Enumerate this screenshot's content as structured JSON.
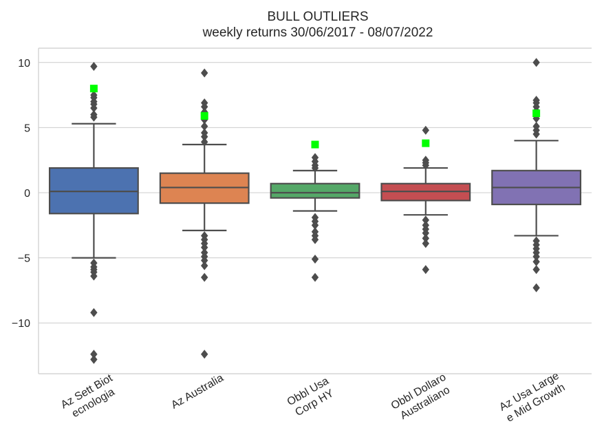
{
  "chart_data": {
    "type": "box",
    "title": "BULL OUTLIERS",
    "subtitle": "weekly returns 30/06/2017 - 08/07/2022",
    "xlabel": "",
    "ylabel": "",
    "ylim": [
      -13.9,
      11.1
    ],
    "yticks": [
      10,
      5,
      0,
      -5,
      -10
    ],
    "grid": "horizontal",
    "highlight_color": "#00ff00",
    "series": [
      {
        "category_lines": [
          "Az Sett Biot",
          "ecnologia"
        ],
        "color": "#4c72b0",
        "whisker_low": -5.0,
        "q1": -1.6,
        "median": 0.1,
        "q3": 1.9,
        "whisker_high": 5.3,
        "outliers": [
          9.7,
          7.5,
          7.3,
          7.0,
          6.8,
          6.5,
          6.0,
          5.8,
          -5.4,
          -5.7,
          -5.9,
          -6.1,
          -6.4,
          -9.2,
          -12.4,
          -12.8
        ],
        "highlight": 8.0
      },
      {
        "category_lines": [
          "Az Australia"
        ],
        "color": "#dd8452",
        "whisker_low": -2.9,
        "q1": -0.8,
        "median": 0.4,
        "q3": 1.5,
        "whisker_high": 3.7,
        "outliers": [
          9.2,
          6.9,
          6.6,
          6.2,
          5.6,
          5.1,
          4.6,
          4.3,
          3.9,
          -3.3,
          -3.6,
          -3.9,
          -4.2,
          -4.6,
          -4.9,
          -5.2,
          -5.6,
          -6.5,
          -12.4
        ],
        "highlight": 5.9
      },
      {
        "category_lines": [
          "Obbl Usa",
          "Corp HY"
        ],
        "color": "#55a868",
        "whisker_low": -1.4,
        "q1": -0.4,
        "median": 0.0,
        "q3": 0.7,
        "whisker_high": 1.7,
        "outliers": [
          2.7,
          2.4,
          2.1,
          1.9,
          -1.9,
          -2.2,
          -2.5,
          -3.0,
          -3.3,
          -3.6,
          -5.1,
          -6.5
        ],
        "highlight": 3.7
      },
      {
        "category_lines": [
          "Obbl Dollaro",
          "Australiano"
        ],
        "color": "#c44e52",
        "whisker_low": -1.7,
        "q1": -0.6,
        "median": 0.1,
        "q3": 0.7,
        "whisker_high": 1.9,
        "outliers": [
          4.8,
          2.5,
          2.3,
          2.1,
          -2.1,
          -2.5,
          -2.8,
          -3.1,
          -3.5,
          -3.9,
          -5.9
        ],
        "highlight": 3.8
      },
      {
        "category_lines": [
          "Az Usa Large",
          "e Mid Growth"
        ],
        "color": "#8172b3",
        "whisker_low": -3.3,
        "q1": -0.9,
        "median": 0.4,
        "q3": 1.7,
        "whisker_high": 4.0,
        "outliers": [
          10.0,
          7.1,
          6.9,
          6.6,
          6.3,
          5.7,
          5.1,
          4.8,
          4.5,
          -3.7,
          -4.0,
          -4.3,
          -4.6,
          -4.9,
          -5.3,
          -5.9,
          -7.3
        ],
        "highlight": 6.1
      }
    ]
  }
}
